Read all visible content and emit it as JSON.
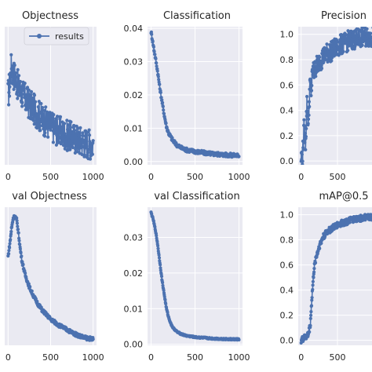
{
  "figure": {
    "style": "seaborn-darkgrid",
    "colors": {
      "panel_bg": "#eaeaf2",
      "grid": "#ffffff",
      "series": "#4c72b0",
      "text": "#262626"
    },
    "legend": {
      "label": "results",
      "placement": "top-right"
    }
  },
  "chart_data": [
    {
      "type": "line",
      "title": "Objectness",
      "marker": "circle",
      "series": [
        {
          "name": "results",
          "x": [
            0,
            20,
            40,
            60,
            80,
            100,
            120,
            150,
            200,
            250,
            300,
            350,
            400,
            450,
            500,
            550,
            600,
            650,
            700,
            750,
            800,
            850,
            900,
            950,
            1000
          ],
          "y": [
            0.0095,
            0.011,
            0.013,
            0.012,
            0.0118,
            0.0112,
            0.0105,
            0.01,
            0.0092,
            0.0085,
            0.008,
            0.0074,
            0.0068,
            0.0064,
            0.006,
            0.0057,
            0.0054,
            0.0051,
            0.0049,
            0.0047,
            0.0045,
            0.0043,
            0.0041,
            0.004,
            0.0039
          ]
        }
      ],
      "noise": 0.0018,
      "xlim": [
        -40,
        1040
      ],
      "ylim": [
        0.0015,
        0.0175
      ],
      "xticks": [
        0,
        500,
        1000
      ],
      "yticks": []
    },
    {
      "type": "line",
      "title": "Classification",
      "marker": "circle",
      "series": [
        {
          "name": "results",
          "x": [
            0,
            25,
            50,
            75,
            100,
            125,
            150,
            175,
            200,
            250,
            300,
            350,
            400,
            500,
            600,
            700,
            800,
            900,
            1000
          ],
          "y": [
            0.039,
            0.035,
            0.031,
            0.027,
            0.022,
            0.018,
            0.014,
            0.0105,
            0.0085,
            0.0062,
            0.0048,
            0.004,
            0.0035,
            0.003,
            0.0026,
            0.0023,
            0.0021,
            0.0019,
            0.0018
          ]
        }
      ],
      "noise": 0.0006,
      "xlim": [
        -40,
        1040
      ],
      "ylim": [
        -0.001,
        0.0405
      ],
      "xticks": [
        0,
        500,
        1000
      ],
      "yticks": [
        0.0,
        0.01,
        0.02,
        0.03,
        0.04
      ]
    },
    {
      "type": "line",
      "title": "Precision",
      "marker": "circle",
      "series": [
        {
          "name": "results",
          "x": [
            0,
            20,
            40,
            60,
            80,
            100,
            120,
            140,
            160,
            180,
            200,
            250,
            300,
            350,
            400,
            450,
            500,
            550,
            600,
            650,
            700,
            750,
            800,
            850,
            900,
            950,
            1000
          ],
          "y": [
            0.02,
            0.05,
            0.25,
            0.15,
            0.45,
            0.3,
            0.6,
            0.55,
            0.72,
            0.7,
            0.74,
            0.78,
            0.82,
            0.85,
            0.86,
            0.88,
            0.9,
            0.92,
            0.93,
            0.95,
            0.96,
            0.96,
            0.97,
            0.98,
            0.98,
            0.98,
            0.98
          ]
        }
      ],
      "noise": 0.08,
      "xlim": [
        -40,
        1040
      ],
      "ylim": [
        -0.03,
        1.06
      ],
      "xticks": [
        0,
        500
      ],
      "yticks": [
        0.0,
        0.2,
        0.4,
        0.6,
        0.8,
        1.0
      ]
    },
    {
      "type": "line",
      "title": "val Objectness",
      "marker": "circle",
      "series": [
        {
          "name": "results",
          "x": [
            0,
            20,
            40,
            60,
            80,
            100,
            120,
            140,
            160,
            200,
            250,
            300,
            350,
            400,
            450,
            500,
            550,
            600,
            700,
            800,
            900,
            1000
          ],
          "y": [
            0.6,
            0.68,
            0.78,
            0.85,
            0.86,
            0.84,
            0.76,
            0.66,
            0.58,
            0.48,
            0.4,
            0.34,
            0.29,
            0.25,
            0.22,
            0.19,
            0.17,
            0.15,
            0.12,
            0.09,
            0.07,
            0.06
          ]
        }
      ],
      "noise": 0.012,
      "xlim": [
        -40,
        1040
      ],
      "ylim": [
        0.02,
        0.92
      ],
      "xticks": [
        0,
        500,
        1000
      ],
      "yticks": []
    },
    {
      "type": "line",
      "title": "val Classification",
      "marker": "circle",
      "series": [
        {
          "name": "results",
          "x": [
            0,
            25,
            50,
            75,
            100,
            125,
            150,
            175,
            200,
            225,
            250,
            300,
            350,
            400,
            500,
            600,
            700,
            800,
            900,
            1000
          ],
          "y": [
            0.037,
            0.035,
            0.032,
            0.028,
            0.023,
            0.018,
            0.014,
            0.01,
            0.0075,
            0.0058,
            0.0046,
            0.0034,
            0.0028,
            0.0024,
            0.002,
            0.0018,
            0.0016,
            0.0015,
            0.0014,
            0.0014
          ]
        }
      ],
      "noise": 0.0002,
      "xlim": [
        -40,
        1040
      ],
      "ylim": [
        -0.0003,
        0.0385
      ],
      "xticks": [
        0,
        500,
        1000
      ],
      "yticks": [
        0.0,
        0.01,
        0.02,
        0.03
      ]
    },
    {
      "type": "line",
      "title": "mAP@0.5",
      "marker": "circle",
      "series": [
        {
          "name": "results",
          "x": [
            0,
            25,
            50,
            75,
            100,
            125,
            150,
            175,
            200,
            250,
            300,
            350,
            400,
            450,
            500,
            550,
            600,
            650,
            700,
            800,
            900,
            1000
          ],
          "y": [
            0.0,
            0.01,
            0.02,
            0.03,
            0.05,
            0.12,
            0.35,
            0.55,
            0.65,
            0.75,
            0.82,
            0.86,
            0.88,
            0.9,
            0.92,
            0.93,
            0.94,
            0.95,
            0.96,
            0.97,
            0.98,
            0.98
          ]
        }
      ],
      "noise": 0.025,
      "xlim": [
        -40,
        1040
      ],
      "ylim": [
        -0.04,
        1.06
      ],
      "xticks": [
        0,
        500
      ],
      "yticks": [
        0.0,
        0.2,
        0.4,
        0.6,
        0.8,
        1.0
      ]
    }
  ]
}
